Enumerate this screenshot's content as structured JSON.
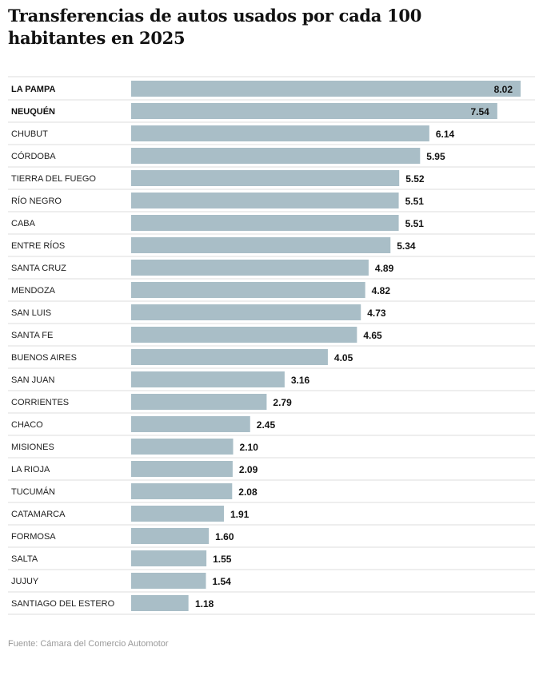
{
  "title": "Transferencias de autos usados por cada 100 habitantes en 2025",
  "source": "Fuente: Cámara del Comercio Automotor",
  "colors": {
    "bar": "#a9bec7",
    "row_line": "#dddddd",
    "text": "#222222"
  },
  "chart_data": {
    "type": "bar",
    "orientation": "horizontal",
    "title": "Transferencias de autos usados por cada 100 habitantes en 2025",
    "xlabel": "",
    "ylabel": "",
    "xlim": [
      0,
      8.02
    ],
    "grid": false,
    "highlighted": [
      "LA PAMPA",
      "NEUQUÉN"
    ],
    "categories": [
      "LA PAMPA",
      "NEUQUÉN",
      "CHUBUT",
      "CÓRDOBA",
      "TIERRA DEL FUEGO",
      "RÍO NEGRO",
      "CABA",
      "ENTRE RÍOS",
      "SANTA CRUZ",
      "MENDOZA",
      "SAN LUIS",
      "SANTA FE",
      "BUENOS AIRES",
      "SAN JUAN",
      "CORRIENTES",
      "CHACO",
      "MISIONES",
      "LA RIOJA",
      "TUCUMÁN",
      "CATAMARCA",
      "FORMOSA",
      "SALTA",
      "JUJUY",
      "SANTIAGO DEL ESTERO"
    ],
    "values": [
      8.02,
      7.54,
      6.14,
      5.95,
      5.52,
      5.51,
      5.51,
      5.34,
      4.89,
      4.82,
      4.73,
      4.65,
      4.05,
      3.16,
      2.79,
      2.45,
      2.1,
      2.09,
      2.08,
      1.91,
      1.6,
      1.55,
      1.54,
      1.18
    ],
    "value_labels": [
      "8.02",
      "7.54",
      "6.14",
      "5.95",
      "5.52",
      "5.51",
      "5.51",
      "5.34",
      "4.89",
      "4.82",
      "4.73",
      "4.65",
      "4.05",
      "3.16",
      "2.79",
      "2.45",
      "2.10",
      "2.09",
      "2.08",
      "1.91",
      "1.60",
      "1.55",
      "1.54",
      "1.18"
    ]
  }
}
